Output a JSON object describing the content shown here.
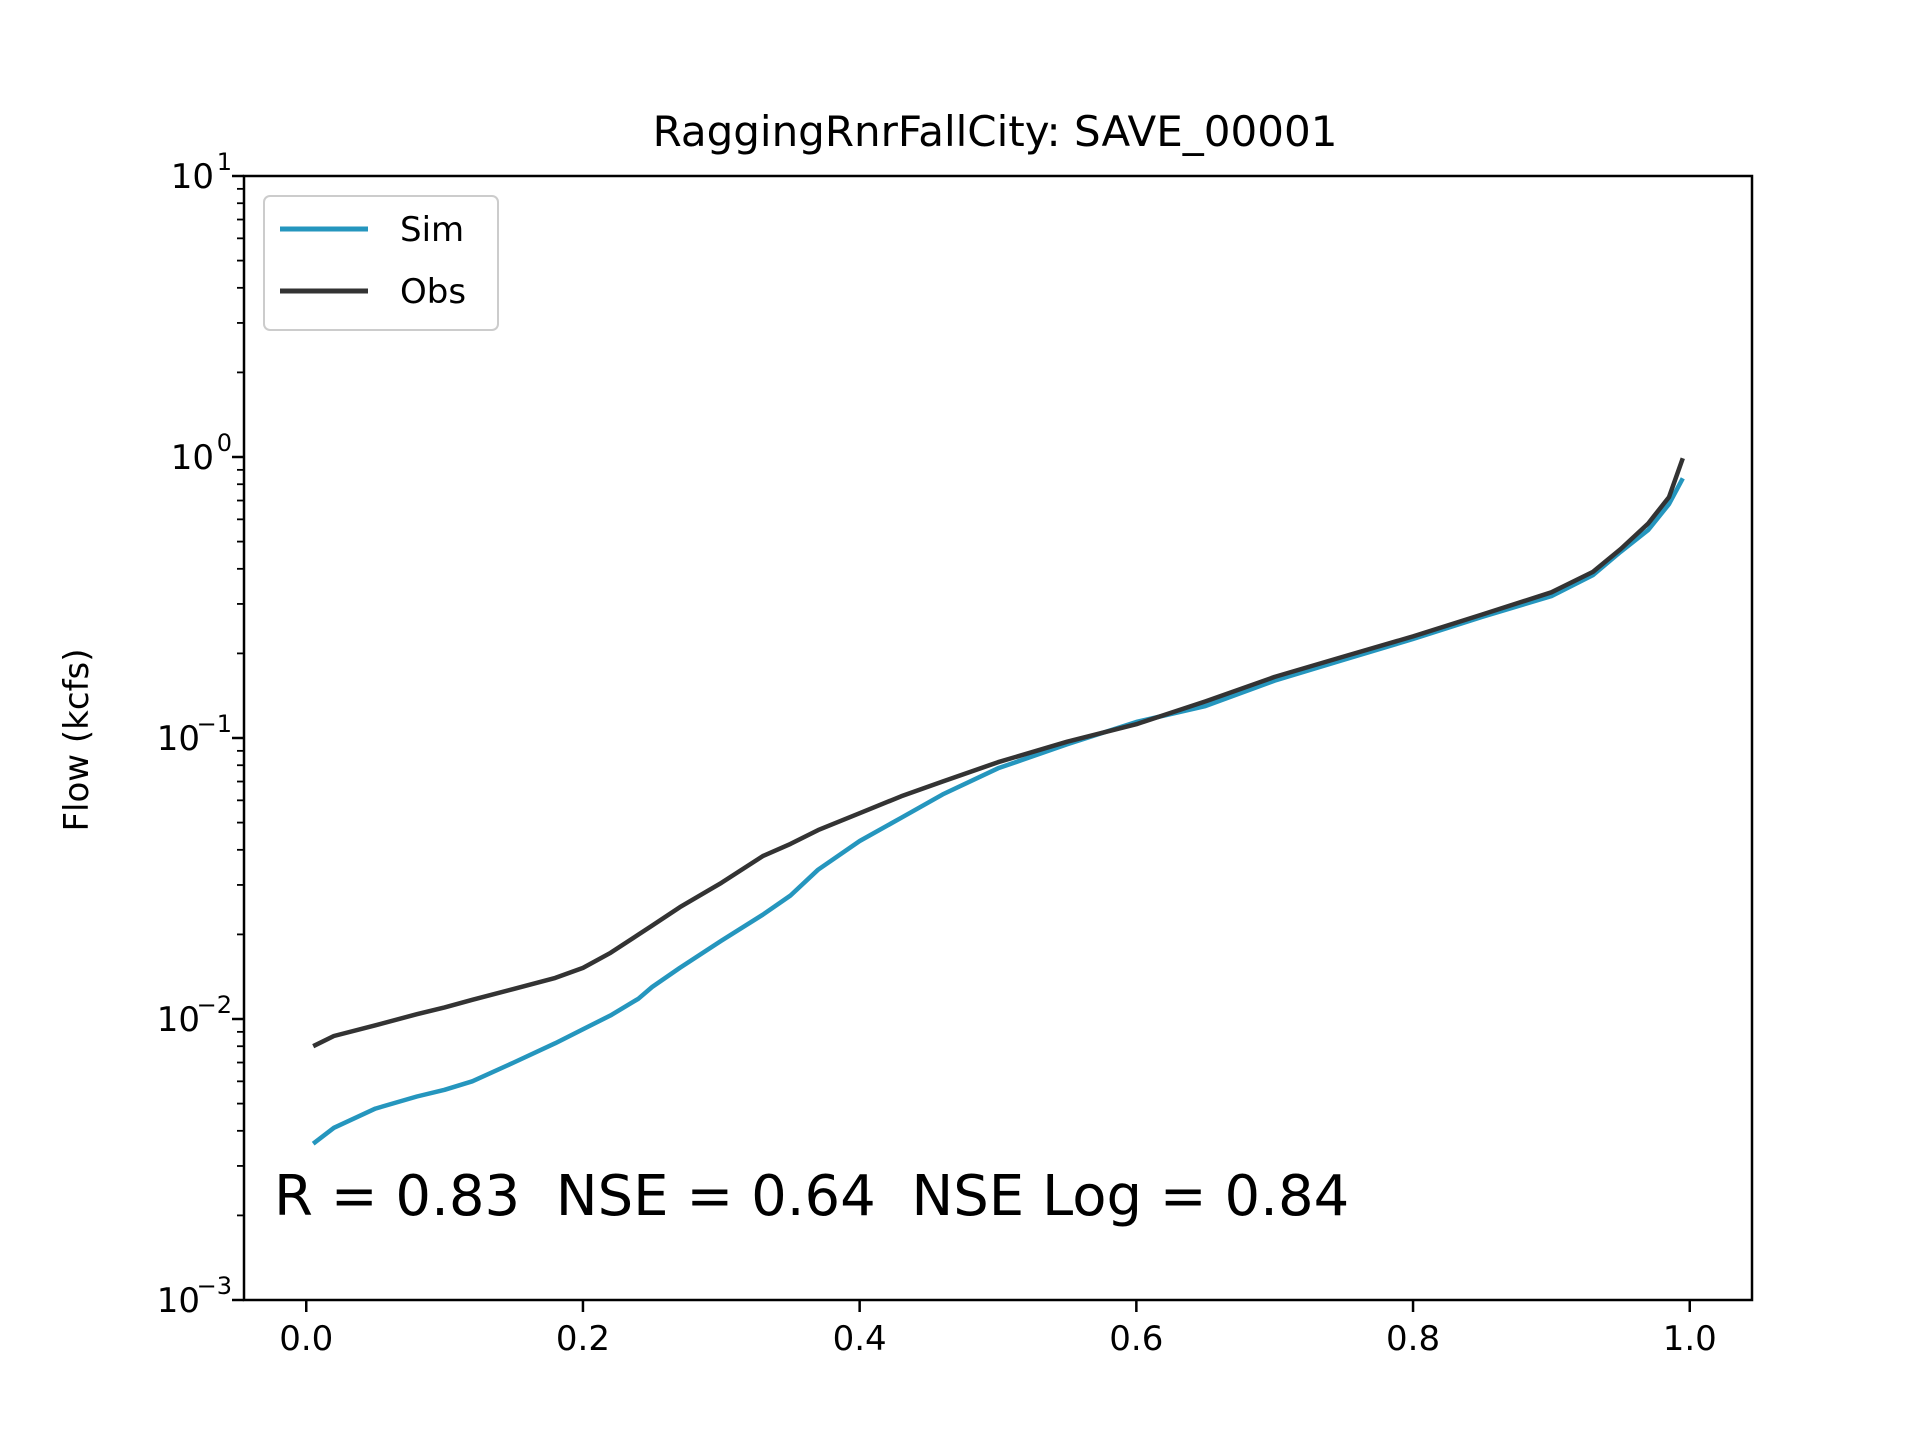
{
  "chart_data": {
    "type": "line",
    "title": "RaggingRnrFallCity: SAVE_00001",
    "xlabel": "",
    "ylabel": "Flow (kcfs)",
    "xlim": [
      -0.045,
      1.045
    ],
    "ylim": [
      0.001,
      10
    ],
    "yscale": "log",
    "grid": false,
    "legend_position": "top-left",
    "x_ticks": [
      {
        "value": 0.0,
        "label": "0.0"
      },
      {
        "value": 0.2,
        "label": "0.2"
      },
      {
        "value": 0.4,
        "label": "0.4"
      },
      {
        "value": 0.6,
        "label": "0.6"
      },
      {
        "value": 0.8,
        "label": "0.8"
      },
      {
        "value": 1.0,
        "label": "1.0"
      }
    ],
    "y_ticks": [
      {
        "value": 0.001,
        "base": "10",
        "exp": "−3"
      },
      {
        "value": 0.01,
        "base": "10",
        "exp": "−2"
      },
      {
        "value": 0.1,
        "base": "10",
        "exp": "−1"
      },
      {
        "value": 1,
        "base": "10",
        "exp": "0"
      },
      {
        "value": 10,
        "base": "10",
        "exp": "1"
      }
    ],
    "annotation": "R = 0.83  NSE = 0.64  NSE Log = 0.84",
    "series": [
      {
        "name": "Sim",
        "color": "#2596be",
        "x": [
          0.005,
          0.02,
          0.05,
          0.08,
          0.1,
          0.12,
          0.15,
          0.18,
          0.2,
          0.22,
          0.24,
          0.25,
          0.27,
          0.3,
          0.33,
          0.35,
          0.37,
          0.4,
          0.43,
          0.46,
          0.5,
          0.55,
          0.6,
          0.65,
          0.7,
          0.75,
          0.8,
          0.85,
          0.9,
          0.93,
          0.95,
          0.97,
          0.985,
          0.995
        ],
        "y": [
          0.0036,
          0.0041,
          0.0048,
          0.0053,
          0.0056,
          0.006,
          0.007,
          0.0082,
          0.0092,
          0.0103,
          0.0118,
          0.013,
          0.0152,
          0.019,
          0.0235,
          0.0275,
          0.034,
          0.043,
          0.052,
          0.063,
          0.078,
          0.095,
          0.114,
          0.13,
          0.16,
          0.19,
          0.225,
          0.27,
          0.32,
          0.38,
          0.46,
          0.55,
          0.68,
          0.84
        ]
      },
      {
        "name": "Obs",
        "color": "#333333",
        "x": [
          0.005,
          0.02,
          0.05,
          0.08,
          0.1,
          0.12,
          0.15,
          0.18,
          0.2,
          0.22,
          0.25,
          0.27,
          0.3,
          0.33,
          0.35,
          0.37,
          0.4,
          0.43,
          0.46,
          0.5,
          0.55,
          0.6,
          0.65,
          0.7,
          0.75,
          0.8,
          0.85,
          0.9,
          0.93,
          0.95,
          0.97,
          0.985,
          0.995
        ],
        "y": [
          0.008,
          0.0087,
          0.0095,
          0.0104,
          0.011,
          0.0117,
          0.0128,
          0.014,
          0.0152,
          0.0172,
          0.0215,
          0.025,
          0.0305,
          0.038,
          0.042,
          0.047,
          0.054,
          0.062,
          0.07,
          0.082,
          0.097,
          0.112,
          0.135,
          0.165,
          0.195,
          0.23,
          0.275,
          0.33,
          0.39,
          0.47,
          0.58,
          0.72,
          0.99
        ]
      }
    ]
  }
}
